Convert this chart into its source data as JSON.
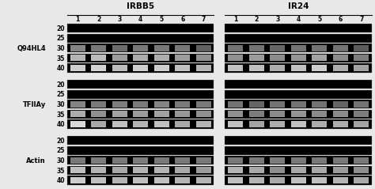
{
  "title_left": "IRBB5",
  "title_right": "IR24",
  "gene_labels": [
    "Q94HL4",
    "TFIIAy",
    "Actin"
  ],
  "cycle_labels": [
    "20",
    "25",
    "30",
    "35",
    "40"
  ],
  "lane_labels": [
    "1",
    "2",
    "3",
    "4",
    "5",
    "6",
    "7"
  ],
  "bg_color": "#e8e8e8",
  "fig_width": 4.74,
  "fig_height": 2.39,
  "dpi": 100,
  "irbb5_bands": [
    [
      [
        0,
        0,
        0,
        0,
        0,
        0,
        0
      ],
      [
        0,
        0,
        0,
        0,
        0,
        0,
        0
      ],
      [
        0.55,
        0.5,
        0.45,
        0.5,
        0.5,
        0.5,
        0.4
      ],
      [
        0.75,
        0.78,
        0.65,
        0.72,
        0.72,
        0.65,
        0.6
      ],
      [
        0.85,
        0.88,
        0.78,
        0.85,
        0.85,
        0.8,
        0.75
      ]
    ],
    [
      [
        0,
        0,
        0,
        0,
        0,
        0,
        0
      ],
      [
        0,
        0,
        0,
        0,
        0,
        0,
        0
      ],
      [
        0.55,
        0.5,
        0.52,
        0.5,
        0.55,
        0.5,
        0.5
      ],
      [
        0.72,
        0.6,
        0.68,
        0.65,
        0.68,
        0.63,
        0.6
      ],
      [
        0.9,
        0.7,
        0.8,
        0.75,
        0.8,
        0.7,
        0.75
      ]
    ],
    [
      [
        0,
        0,
        0,
        0,
        0,
        0,
        0
      ],
      [
        0,
        0,
        0,
        0,
        0,
        0,
        0
      ],
      [
        0.5,
        0.52,
        0.5,
        0.52,
        0.5,
        0.5,
        0.5
      ],
      [
        0.8,
        0.75,
        0.7,
        0.75,
        0.75,
        0.7,
        0.65
      ],
      [
        0.85,
        0.8,
        0.75,
        0.8,
        0.8,
        0.75,
        0.75
      ]
    ]
  ],
  "ir24_bands": [
    [
      [
        0,
        0,
        0,
        0,
        0,
        0,
        0
      ],
      [
        0,
        0,
        0,
        0,
        0,
        0,
        0
      ],
      [
        0.48,
        0.48,
        0.42,
        0.48,
        0.48,
        0.48,
        0.38
      ],
      [
        0.6,
        0.65,
        0.58,
        0.62,
        0.68,
        0.58,
        0.52
      ],
      [
        0.8,
        0.8,
        0.72,
        0.8,
        0.85,
        0.72,
        0.68
      ]
    ],
    [
      [
        0,
        0,
        0,
        0,
        0,
        0,
        0
      ],
      [
        0,
        0,
        0,
        0,
        0,
        0,
        0
      ],
      [
        0.48,
        0.42,
        0.48,
        0.48,
        0.48,
        0.42,
        0.48
      ],
      [
        0.6,
        0.52,
        0.58,
        0.62,
        0.58,
        0.58,
        0.52
      ],
      [
        0.8,
        0.68,
        0.72,
        0.8,
        0.72,
        0.72,
        0.68
      ]
    ],
    [
      [
        0,
        0,
        0,
        0,
        0,
        0,
        0
      ],
      [
        0,
        0,
        0,
        0,
        0,
        0,
        0
      ],
      [
        0.5,
        0.5,
        0.52,
        0.5,
        0.5,
        0.5,
        0.5
      ],
      [
        0.75,
        0.7,
        0.6,
        0.7,
        0.7,
        0.65,
        0.6
      ],
      [
        0.8,
        0.75,
        0.7,
        0.8,
        0.8,
        0.75,
        0.7
      ]
    ]
  ]
}
